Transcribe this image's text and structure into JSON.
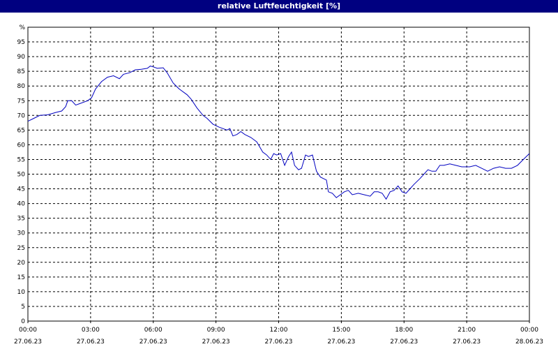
{
  "window": {
    "title": "relative Luftfeuchtigkeit [%]"
  },
  "colors": {
    "title_bar": "#000080",
    "title_text": "#ffffff",
    "line": "#0000c0",
    "grid": "#000000",
    "background": "#ffffff"
  },
  "chart_data": {
    "type": "line",
    "title": "relative Luftfeuchtigkeit [%]",
    "ylabel": "%",
    "xlabel": "",
    "ylim": [
      0,
      100
    ],
    "yticks": [
      0,
      5,
      10,
      15,
      20,
      25,
      30,
      35,
      40,
      45,
      50,
      55,
      60,
      65,
      70,
      75,
      80,
      85,
      90,
      95
    ],
    "xlim": [
      "27.06.23 00:00",
      "28.06.23 00:00"
    ],
    "xticks": [
      {
        "time": "00:00",
        "date": "27.06.23",
        "hour": 0
      },
      {
        "time": "03:00",
        "date": "27.06.23",
        "hour": 3
      },
      {
        "time": "06:00",
        "date": "27.06.23",
        "hour": 6
      },
      {
        "time": "09:00",
        "date": "27.06.23",
        "hour": 9
      },
      {
        "time": "12:00",
        "date": "27.06.23",
        "hour": 12
      },
      {
        "time": "15:00",
        "date": "27.06.23",
        "hour": 15
      },
      {
        "time": "18:00",
        "date": "27.06.23",
        "hour": 18
      },
      {
        "time": "21:00",
        "date": "27.06.23",
        "hour": 21
      },
      {
        "time": "00:00",
        "date": "28.06.23",
        "hour": 24
      }
    ],
    "grid": true,
    "series": [
      {
        "points": [
          [
            0.0,
            68.0
          ],
          [
            0.3,
            69.0
          ],
          [
            0.6,
            70.0
          ],
          [
            1.0,
            70.2
          ],
          [
            1.4,
            71.0
          ],
          [
            1.7,
            71.5
          ],
          [
            1.9,
            73.0
          ],
          [
            2.0,
            75.0
          ],
          [
            2.2,
            75.0
          ],
          [
            2.4,
            73.5
          ],
          [
            2.6,
            74.0
          ],
          [
            3.0,
            75.0
          ],
          [
            3.2,
            76.0
          ],
          [
            3.4,
            79.0
          ],
          [
            3.7,
            81.5
          ],
          [
            4.0,
            83.0
          ],
          [
            4.3,
            83.5
          ],
          [
            4.6,
            82.5
          ],
          [
            4.8,
            84.0
          ],
          [
            5.1,
            84.5
          ],
          [
            5.4,
            85.5
          ],
          [
            5.7,
            85.7
          ],
          [
            6.0,
            86.0
          ],
          [
            6.15,
            86.8
          ],
          [
            6.3,
            86.5
          ],
          [
            6.5,
            86.0
          ],
          [
            6.8,
            86.2
          ],
          [
            7.0,
            84.5
          ],
          [
            7.3,
            81.0
          ],
          [
            7.6,
            79.0
          ],
          [
            8.0,
            77.0
          ],
          [
            8.2,
            75.5
          ],
          [
            8.5,
            72.5
          ],
          [
            8.8,
            70.0
          ],
          [
            9.0,
            69.0
          ],
          [
            9.3,
            67.0
          ],
          [
            9.6,
            66.0
          ],
          [
            10.0,
            65.0
          ],
          [
            10.15,
            65.5
          ],
          [
            10.3,
            63.0
          ],
          [
            10.5,
            63.5
          ],
          [
            10.7,
            64.5
          ],
          [
            10.9,
            63.5
          ],
          [
            11.2,
            62.5
          ],
          [
            11.5,
            61.0
          ],
          [
            11.8,
            57.5
          ],
          [
            12.0,
            56.5
          ],
          [
            12.2,
            55.0
          ],
          [
            12.35,
            57.0
          ],
          [
            12.5,
            56.5
          ],
          [
            12.7,
            57.0
          ],
          [
            12.9,
            53.0
          ],
          [
            13.1,
            56.0
          ],
          [
            13.25,
            57.5
          ],
          [
            13.4,
            53.0
          ],
          [
            13.6,
            51.5
          ],
          [
            13.75,
            52.0
          ],
          [
            13.95,
            56.5
          ],
          [
            14.1,
            56.0
          ],
          [
            14.3,
            56.5
          ],
          [
            14.5,
            51.0
          ],
          [
            14.7,
            49.0
          ],
          [
            15.0,
            48.0
          ],
          [
            15.1,
            44.0
          ],
          [
            15.3,
            43.5
          ],
          [
            15.5,
            42.0
          ],
          [
            15.7,
            43.0
          ],
          [
            15.9,
            44.0
          ],
          [
            16.1,
            44.5
          ],
          [
            16.3,
            43.0
          ],
          [
            16.6,
            43.5
          ],
          [
            16.9,
            43.0
          ],
          [
            17.2,
            42.5
          ],
          [
            17.4,
            44.0
          ],
          [
            17.6,
            44.0
          ],
          [
            17.8,
            43.5
          ],
          [
            18.0,
            41.5
          ],
          [
            18.2,
            44.0
          ],
          [
            18.4,
            44.5
          ],
          [
            18.6,
            46.0
          ],
          [
            18.8,
            44.0
          ],
          [
            19.0,
            43.5
          ],
          [
            19.2,
            45.0
          ],
          [
            19.4,
            46.5
          ],
          [
            19.7,
            48.5
          ],
          [
            19.9,
            50.0
          ],
          [
            20.1,
            51.5
          ],
          [
            20.3,
            51.0
          ],
          [
            20.5,
            51.0
          ],
          [
            20.7,
            53.0
          ],
          [
            20.9,
            53.0
          ],
          [
            21.2,
            53.5
          ],
          [
            21.5,
            53.0
          ],
          [
            21.8,
            52.5
          ],
          [
            22.2,
            52.5
          ],
          [
            22.5,
            53.0
          ],
          [
            22.8,
            52.0
          ],
          [
            23.1,
            51.0
          ],
          [
            23.4,
            52.0
          ],
          [
            23.7,
            52.5
          ],
          [
            24.0,
            52.0
          ],
          [
            24.3,
            52.0
          ],
          [
            24.6,
            53.0
          ],
          [
            24.9,
            55.0
          ],
          [
            25.2,
            57.0
          ]
        ]
      }
    ]
  }
}
